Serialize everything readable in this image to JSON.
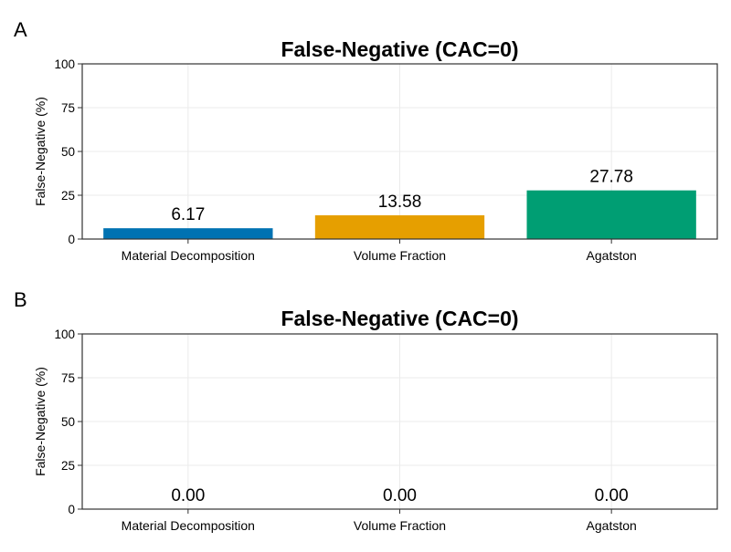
{
  "panels": [
    {
      "letter": "A",
      "chart_data": {
        "type": "bar",
        "title": "False-Negative (CAC=0)",
        "xlabel": "",
        "ylabel": "False-Negative (%)",
        "categories": [
          "Material Decomposition",
          "Volume Fraction",
          "Agatston"
        ],
        "values": [
          6.17,
          13.58,
          27.78
        ],
        "data_labels": [
          "6.17",
          "13.58",
          "27.78"
        ],
        "colors": [
          "#0072B2",
          "#E69F00",
          "#009E73"
        ],
        "ylim": [
          0,
          100
        ],
        "yticks": [
          0,
          25,
          50,
          75,
          100
        ],
        "grid": true,
        "legend": "none"
      }
    },
    {
      "letter": "B",
      "chart_data": {
        "type": "bar",
        "title": "False-Negative (CAC=0)",
        "xlabel": "",
        "ylabel": "False-Negative (%)",
        "categories": [
          "Material Decomposition",
          "Volume Fraction",
          "Agatston"
        ],
        "values": [
          0,
          0,
          0
        ],
        "data_labels": [
          "0.00",
          "0.00",
          "0.00"
        ],
        "colors": [
          "#0072B2",
          "#E69F00",
          "#009E73"
        ],
        "ylim": [
          0,
          100
        ],
        "yticks": [
          0,
          25,
          50,
          75,
          100
        ],
        "grid": true,
        "legend": "none"
      }
    }
  ]
}
